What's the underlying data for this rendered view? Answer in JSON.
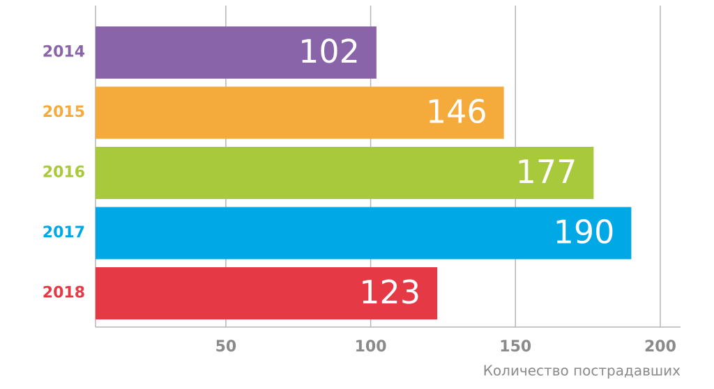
{
  "chart_data": {
    "type": "hbar",
    "categories": [
      "2014",
      "2015",
      "2016",
      "2017",
      "2018"
    ],
    "values": [
      102,
      146,
      177,
      190,
      123
    ],
    "colors": [
      "#8a64a8",
      "#f5ab3c",
      "#a8c93c",
      "#00a8e6",
      "#e63946"
    ],
    "xlabel": "Количество пострадавших",
    "xlim": [
      5,
      207
    ],
    "xticks": [
      50,
      100,
      150,
      200
    ],
    "grid": true
  }
}
